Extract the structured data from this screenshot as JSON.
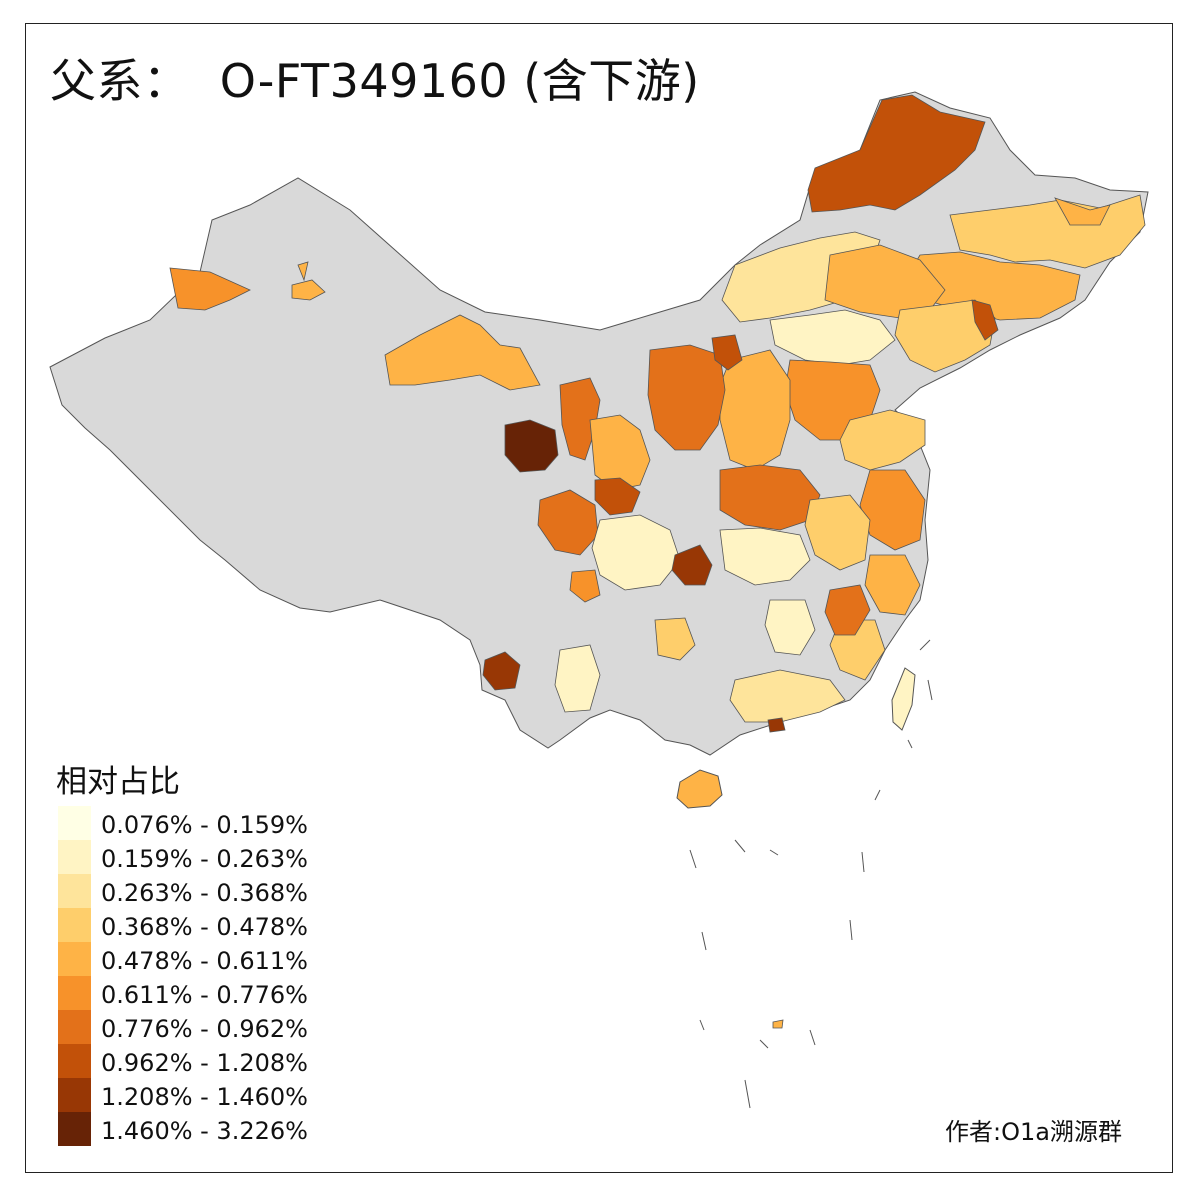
{
  "title": "父系：  O-FT349160 (含下游)",
  "legend": {
    "title": "相对占比",
    "items": [
      {
        "label": "0.076% - 0.159%",
        "color": "#ffffe5"
      },
      {
        "label": "0.159% - 0.263%",
        "color": "#fff4c4"
      },
      {
        "label": "0.263% - 0.368%",
        "color": "#fee49b"
      },
      {
        "label": "0.368% - 0.478%",
        "color": "#fece6b"
      },
      {
        "label": "0.478% - 0.611%",
        "color": "#feb346"
      },
      {
        "label": "0.611% - 0.776%",
        "color": "#f7922a"
      },
      {
        "label": "0.776% - 0.962%",
        "color": "#e3711a"
      },
      {
        "label": "0.962% - 1.208%",
        "color": "#c25109"
      },
      {
        "label": "1.208% - 1.460%",
        "color": "#983705"
      },
      {
        "label": "1.460% - 3.226%",
        "color": "#672306"
      }
    ]
  },
  "credit": "作者:O1a溯源群",
  "colors": {
    "no_data": "#d9d9d9",
    "border": "#555555",
    "frame": "#222222"
  }
}
